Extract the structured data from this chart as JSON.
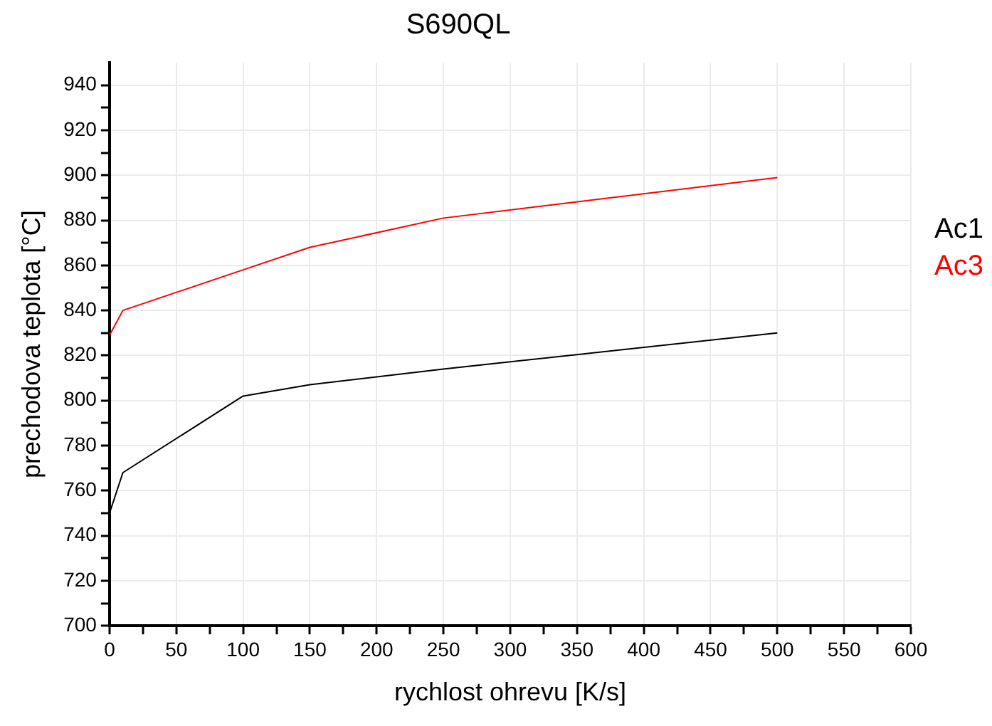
{
  "chart_data": {
    "type": "line",
    "title": "S690QL",
    "xlabel": "rychlost ohrevu [K/s]",
    "ylabel": "prechodova teplota [°C]",
    "x": [
      0,
      10,
      100,
      150,
      250,
      500
    ],
    "series": [
      {
        "name": "Ac1",
        "color": "#000000",
        "values": [
          750,
          768,
          802,
          807,
          814,
          830
        ]
      },
      {
        "name": "Ac3",
        "color": "#ff0000",
        "values": [
          829,
          840,
          858,
          868,
          881,
          899
        ]
      }
    ],
    "xlim": [
      0,
      600
    ],
    "xticks": [
      0,
      {
        "value": 25,
        "label": null
      },
      50,
      {
        "value": 75,
        "label": null
      },
      100,
      {
        "value": 125,
        "label": null
      },
      150,
      {
        "value": 175,
        "label": null
      },
      200,
      {
        "value": 225,
        "label": null
      },
      250,
      {
        "value": 275,
        "label": null
      },
      300,
      {
        "value": 325,
        "label": null
      },
      350,
      {
        "value": 375,
        "label": null
      },
      400,
      {
        "value": 425,
        "label": null
      },
      450,
      {
        "value": 475,
        "label": null
      },
      500,
      {
        "value": 525,
        "label": null
      },
      550,
      {
        "value": 575,
        "label": null
      },
      600
    ],
    "ylim": [
      700,
      950
    ],
    "yticks": [
      700,
      {
        "value": 710,
        "label": null
      },
      720,
      {
        "value": 730,
        "label": null
      },
      740,
      {
        "value": 750,
        "label": null
      },
      760,
      {
        "value": 770,
        "label": null
      },
      780,
      {
        "value": 790,
        "label": null
      },
      800,
      {
        "value": 810,
        "label": null
      },
      820,
      {
        "value": 830,
        "label": null
      },
      840,
      {
        "value": 850,
        "label": null
      },
      860,
      {
        "value": 870,
        "label": null
      },
      880,
      {
        "value": 890,
        "label": null
      },
      900,
      {
        "value": 910,
        "label": null
      },
      920,
      {
        "value": 930,
        "label": null
      },
      940
    ],
    "grid": true,
    "legend": "right",
    "marker": "none",
    "line_style": "solid"
  }
}
